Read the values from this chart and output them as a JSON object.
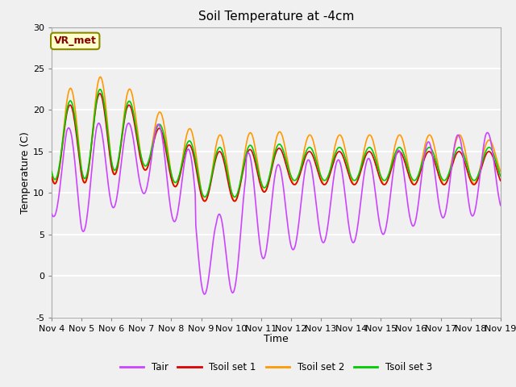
{
  "title": "Soil Temperature at -4cm",
  "xlabel": "Time",
  "ylabel": "Temperature (C)",
  "ylim": [
    -5,
    30
  ],
  "xlim": [
    0,
    15
  ],
  "bg_color": "#f0f0f0",
  "grid_color": "#ffffff",
  "legend_labels": [
    "Tair",
    "Tsoil set 1",
    "Tsoil set 2",
    "Tsoil set 3"
  ],
  "legend_colors": [
    "#cc44ff",
    "#dd0000",
    "#ff9900",
    "#00cc00"
  ],
  "annotation_text": "VR_met",
  "annotation_bg": "#ffffcc",
  "annotation_border": "#888800",
  "x_tick_labels": [
    "Nov 4",
    "Nov 5",
    "Nov 6",
    "Nov 7",
    "Nov 8",
    "Nov 9",
    "Nov 10",
    "Nov 11",
    "Nov 12",
    "Nov 13",
    "Nov 14",
    "Nov 15",
    "Nov 16",
    "Nov 17",
    "Nov 18",
    "Nov 19"
  ],
  "x_ticks": [
    0,
    1,
    2,
    3,
    4,
    5,
    6,
    7,
    8,
    9,
    10,
    11,
    12,
    13,
    14,
    15
  ],
  "y_ticks": [
    -5,
    0,
    5,
    10,
    15,
    20,
    25,
    30
  ],
  "title_fontsize": 11,
  "axis_fontsize": 9,
  "tick_fontsize": 8
}
